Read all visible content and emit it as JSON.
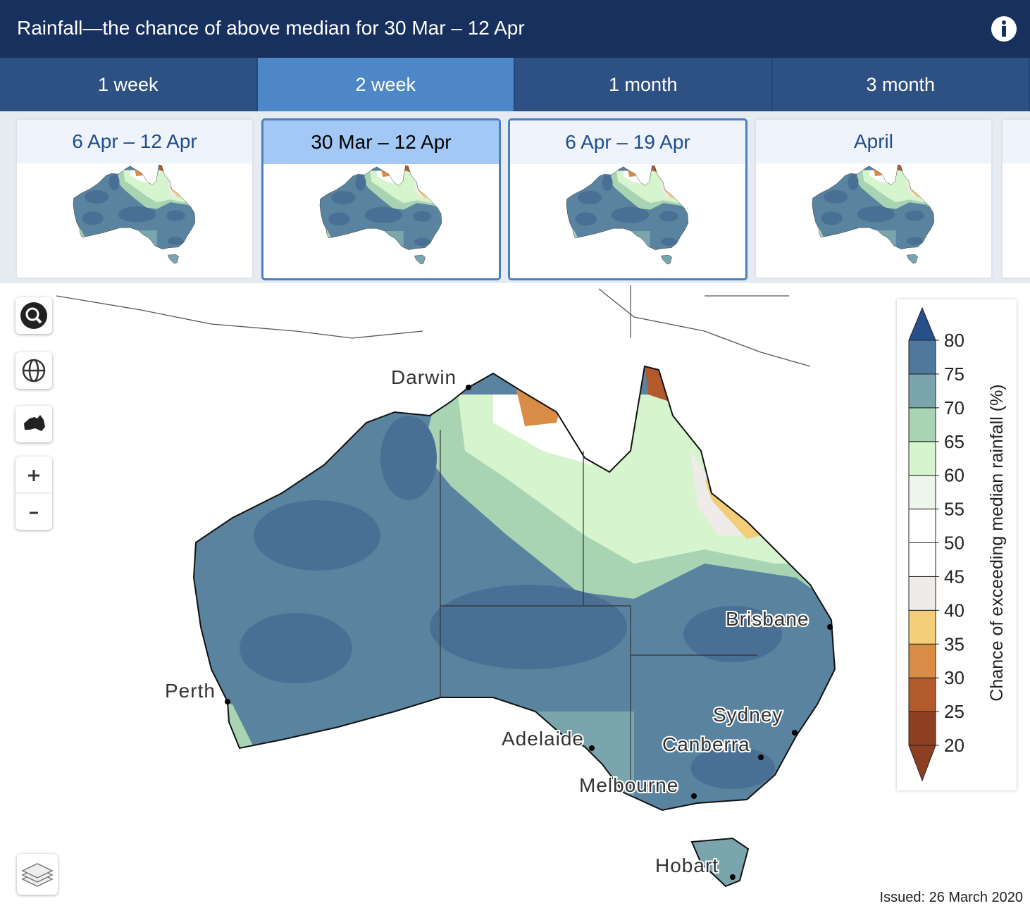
{
  "header": {
    "title": "Rainfall—the chance of above median for 30 Mar – 12 Apr"
  },
  "tabs": [
    "1 week",
    "2 week",
    "1 month",
    "3 month"
  ],
  "periods": [
    "6 Apr – 12 Apr",
    "30 Mar – 12 Apr",
    "6 Apr – 19 Apr",
    "April"
  ],
  "map": {
    "cities": [
      "Darwin",
      "Perth",
      "Brisbane",
      "Sydney",
      "Adelaide",
      "Canberra",
      "Melbourne",
      "Hobart"
    ]
  },
  "legend": {
    "title": "Chance of exceeding median rainfall (%)",
    "ticks": [
      20,
      25,
      30,
      35,
      40,
      45,
      50,
      55,
      60,
      65,
      70,
      75,
      80
    ],
    "colors": [
      "#8e3f22",
      "#b35a2d",
      "#d98c45",
      "#f3cd78",
      "#eeebe8",
      "#ffffff",
      "#ffffff",
      "#eef6ec",
      "#d6f4cd",
      "#a8d4b3",
      "#7ba5ad",
      "#4f789c"
    ],
    "under_color": "#8e3f22",
    "over_color": "#27508a"
  },
  "footer": {
    "issued": "Issued: 26 March 2020"
  }
}
